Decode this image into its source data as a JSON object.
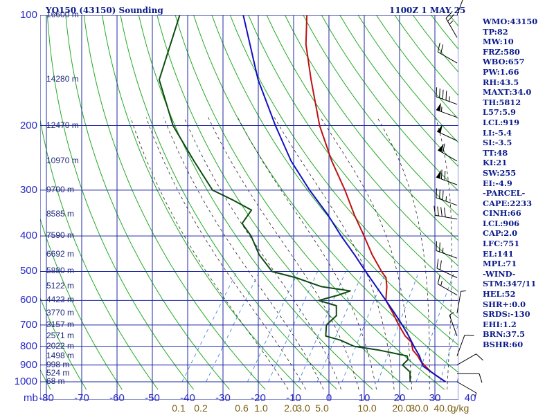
{
  "header": {
    "station": "YQ150 (43150) Sounding",
    "time": "1100Z  1 MAY 25"
  },
  "indices": [
    "WMO:43150",
    "TP:82",
    "MW:10",
    "FRZ:580",
    "WBO:657",
    "PW:1.66",
    "RH:43.5",
    "MAXT:34.0",
    "TH:5812",
    "L57:5.9",
    "LCL:919",
    "LI:-5.4",
    "SI:-3.5",
    "TT:48",
    "KI:21",
    "SW:255",
    "EI:-4.9",
    "-PARCEL-",
    "CAPE:2233",
    "CINH:66",
    "LCL:906",
    "CAP:2.0",
    "LFC:751",
    "EL:141",
    "MPL:71",
    "-WIND-",
    "STM:347/11",
    "HEL:52",
    "SHR+:0.0",
    "SRDS:-130",
    "EHI:1.2",
    "BRN:37.5",
    "BSHR:60"
  ],
  "colors": {
    "background": "#ffffff",
    "isobar": "#1e28a0",
    "isotherm": "#1e28a0",
    "dry_adiabat": "#22aa22",
    "moist_adiabat": "#222222",
    "mixing_ratio": "#4488dd",
    "temperature": "#c01010",
    "dewpoint": "#0e4a12",
    "parcel": "#1010c0",
    "text": "#0a1a8a",
    "axis_label": "#2828c8",
    "mix_label": "#7a5e10"
  },
  "chart_data": {
    "type": "skew-t",
    "title": "YQ150 (43150) Sounding",
    "subtitle": "1100Z  1 MAY 25",
    "y_axis_unit": "mb",
    "x_axis_unit": "C",
    "mix_unit": "g/kg",
    "pressure_levels": [
      100,
      200,
      300,
      400,
      500,
      600,
      700,
      800,
      900,
      1000
    ],
    "pressure_labels": [
      "100",
      "200",
      "300",
      "400",
      "500",
      "600",
      "700",
      "800",
      "900",
      "1000"
    ],
    "x_ticks": [
      -80,
      -70,
      -60,
      -50,
      -40,
      -30,
      -20,
      -10,
      0,
      10,
      20,
      30,
      40
    ],
    "x_tick_labels": [
      "-80",
      "-70",
      "-60",
      "-50",
      "-40",
      "-30",
      "-20",
      "-10",
      "0",
      "10",
      "20",
      "30",
      "40"
    ],
    "ylim": [
      100,
      1000
    ],
    "xlim": [
      -80,
      40
    ],
    "mixing_ratio_labels": [
      "0.1",
      "0.2",
      "0.6",
      "1.0",
      "2.0",
      "3.0",
      "5.0",
      "10.0",
      "20.0",
      "30.0",
      "40.0"
    ],
    "mixing_ratio_values": [
      0.1,
      0.2,
      0.6,
      1.0,
      2.0,
      3.0,
      5.0,
      10.0,
      20.0,
      30.0,
      40.0
    ],
    "heights": [
      {
        "p": 1000,
        "label": "68 m"
      },
      {
        "p": 950,
        "label": "524 m"
      },
      {
        "p": 900,
        "label": "998 m"
      },
      {
        "p": 850,
        "label": "1498 m"
      },
      {
        "p": 800,
        "label": "2022 m"
      },
      {
        "p": 750,
        "label": "2571 m"
      },
      {
        "p": 700,
        "label": "3157 m"
      },
      {
        "p": 650,
        "label": "3770 m"
      },
      {
        "p": 600,
        "label": "4423 m"
      },
      {
        "p": 550,
        "label": "5122 m"
      },
      {
        "p": 500,
        "label": "5880 m"
      },
      {
        "p": 450,
        "label": "6692 m"
      },
      {
        "p": 400,
        "label": "7590 m"
      },
      {
        "p": 350,
        "label": "8585 m"
      },
      {
        "p": 300,
        "label": "9700 m"
      },
      {
        "p": 250,
        "label": "10970 m"
      },
      {
        "p": 200,
        "label": "12470 m"
      },
      {
        "p": 150,
        "label": "14280 m"
      },
      {
        "p": 100,
        "label": "16600 m"
      }
    ],
    "series": [
      {
        "name": "temperature",
        "points": [
          [
            1000,
            33.0
          ],
          [
            970,
            30.0
          ],
          [
            940,
            27.0
          ],
          [
            910,
            24.5
          ],
          [
            880,
            22.0
          ],
          [
            850,
            20.0
          ],
          [
            820,
            17.5
          ],
          [
            800,
            16.5
          ],
          [
            780,
            15.5
          ],
          [
            750,
            12.5
          ],
          [
            700,
            8.5
          ],
          [
            650,
            4.5
          ],
          [
            600,
            0.0
          ],
          [
            580,
            -1.0
          ],
          [
            550,
            -2.5
          ],
          [
            520,
            -4.5
          ],
          [
            500,
            -7.0
          ],
          [
            450,
            -13.0
          ],
          [
            400,
            -19.0
          ],
          [
            350,
            -26.0
          ],
          [
            300,
            -33.5
          ],
          [
            250,
            -43.0
          ],
          [
            200,
            -53.5
          ],
          [
            150,
            -65.0
          ],
          [
            120,
            -73.5
          ],
          [
            100,
            -79.0
          ]
        ]
      },
      {
        "name": "dewpoint",
        "points": [
          [
            1000,
            23.0
          ],
          [
            970,
            22.0
          ],
          [
            940,
            21.0
          ],
          [
            900,
            17.5
          ],
          [
            870,
            18.0
          ],
          [
            850,
            17.0
          ],
          [
            820,
            8.0
          ],
          [
            800,
            0.0
          ],
          [
            770,
            -5.0
          ],
          [
            750,
            -10.0
          ],
          [
            700,
            -12.0
          ],
          [
            660,
            -11.0
          ],
          [
            620,
            -13.0
          ],
          [
            600,
            -19.0
          ],
          [
            580,
            -14.5
          ],
          [
            565,
            -12.0
          ],
          [
            560,
            -15.0
          ],
          [
            550,
            -21.0
          ],
          [
            520,
            -30.0
          ],
          [
            500,
            -38.0
          ],
          [
            450,
            -45.0
          ],
          [
            400,
            -51.0
          ],
          [
            370,
            -56.0
          ],
          [
            340,
            -56.0
          ],
          [
            320,
            -63.0
          ],
          [
            300,
            -71.0
          ],
          [
            250,
            -82.0
          ],
          [
            200,
            -95.0
          ],
          [
            150,
            -108.0
          ],
          [
            100,
            -115.0
          ]
        ]
      },
      {
        "name": "parcel",
        "points": [
          [
            1000,
            33.0
          ],
          [
            950,
            28.0
          ],
          [
            906,
            23.5
          ],
          [
            850,
            20.5
          ],
          [
            800,
            17.0
          ],
          [
            750,
            13.5
          ],
          [
            700,
            9.5
          ],
          [
            650,
            5.0
          ],
          [
            600,
            0.0
          ],
          [
            550,
            -5.5
          ],
          [
            500,
            -11.5
          ],
          [
            450,
            -18.0
          ],
          [
            400,
            -25.5
          ],
          [
            350,
            -33.5
          ],
          [
            300,
            -43.5
          ],
          [
            250,
            -54.5
          ],
          [
            200,
            -66.0
          ],
          [
            150,
            -80.0
          ],
          [
            100,
            -97.0
          ]
        ]
      }
    ],
    "wind_barbs": [
      {
        "p": 100,
        "dir": 20,
        "spd": 10
      },
      {
        "p": 115,
        "dir": 330,
        "spd": 25
      },
      {
        "p": 135,
        "dir": 300,
        "spd": 20
      },
      {
        "p": 175,
        "dir": 290,
        "spd": 45
      },
      {
        "p": 190,
        "dir": 290,
        "spd": 55
      },
      {
        "p": 220,
        "dir": 295,
        "spd": 50
      },
      {
        "p": 250,
        "dir": 300,
        "spd": 60
      },
      {
        "p": 290,
        "dir": 290,
        "spd": 70
      },
      {
        "p": 330,
        "dir": 290,
        "spd": 35
      },
      {
        "p": 360,
        "dir": 280,
        "spd": 40
      },
      {
        "p": 460,
        "dir": 290,
        "spd": 25
      },
      {
        "p": 520,
        "dir": 295,
        "spd": 20
      },
      {
        "p": 580,
        "dir": 300,
        "spd": 15
      },
      {
        "p": 650,
        "dir": 10,
        "spd": 5
      },
      {
        "p": 750,
        "dir": 340,
        "spd": 5
      },
      {
        "p": 850,
        "dir": 20,
        "spd": 10
      },
      {
        "p": 900,
        "dir": 60,
        "spd": 10
      },
      {
        "p": 950,
        "dir": 90,
        "spd": 10
      },
      {
        "p": 1000,
        "dir": 120,
        "spd": 5
      }
    ]
  }
}
